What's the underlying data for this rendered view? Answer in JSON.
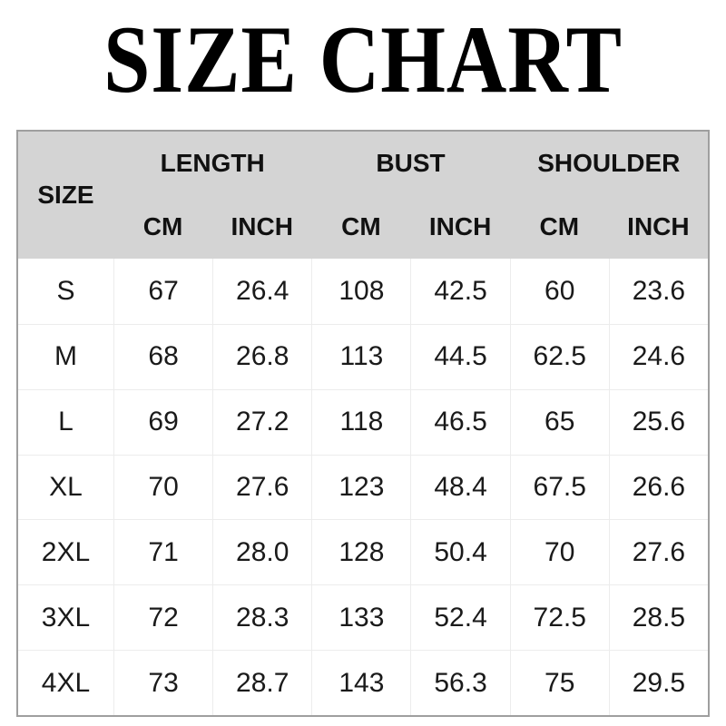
{
  "title": "SIZE CHART",
  "table": {
    "size_label": "SIZE",
    "groups": [
      {
        "label": "LENGTH"
      },
      {
        "label": "BUST"
      },
      {
        "label": "SHOULDER"
      }
    ],
    "units": [
      "CM",
      "INCH",
      "CM",
      "INCH",
      "CM",
      "INCH"
    ],
    "rows": [
      [
        "S",
        "67",
        "26.4",
        "108",
        "42.5",
        "60",
        "23.6"
      ],
      [
        "M",
        "68",
        "26.8",
        "113",
        "44.5",
        "62.5",
        "24.6"
      ],
      [
        "L",
        "69",
        "27.2",
        "118",
        "46.5",
        "65",
        "25.6"
      ],
      [
        "XL",
        "70",
        "27.6",
        "123",
        "48.4",
        "67.5",
        "26.6"
      ],
      [
        "2XL",
        "71",
        "28.0",
        "128",
        "50.4",
        "70",
        "27.6"
      ],
      [
        "3XL",
        "72",
        "28.3",
        "133",
        "52.4",
        "72.5",
        "28.5"
      ],
      [
        "4XL",
        "73",
        "28.7",
        "143",
        "56.3",
        "75",
        "29.5"
      ]
    ]
  },
  "chart_data": {
    "type": "table",
    "title": "SIZE CHART",
    "columns": [
      "SIZE",
      "LENGTH CM",
      "LENGTH INCH",
      "BUST CM",
      "BUST INCH",
      "SHOULDER CM",
      "SHOULDER INCH"
    ],
    "rows": [
      [
        "S",
        67,
        26.4,
        108,
        42.5,
        60,
        23.6
      ],
      [
        "M",
        68,
        26.8,
        113,
        44.5,
        62.5,
        24.6
      ],
      [
        "L",
        69,
        27.2,
        118,
        46.5,
        65,
        25.6
      ],
      [
        "XL",
        70,
        27.6,
        123,
        48.4,
        67.5,
        26.6
      ],
      [
        "2XL",
        71,
        28.0,
        128,
        50.4,
        70,
        27.6
      ],
      [
        "3XL",
        72,
        28.3,
        133,
        52.4,
        72.5,
        28.5
      ],
      [
        "4XL",
        73,
        28.7,
        143,
        56.3,
        75,
        29.5
      ]
    ]
  },
  "colors": {
    "header_bg": "#d4d4d4",
    "table_border": "#9f9f9f",
    "gridline": "#ececec",
    "text": "#1a1a1a",
    "title": "#000000"
  }
}
